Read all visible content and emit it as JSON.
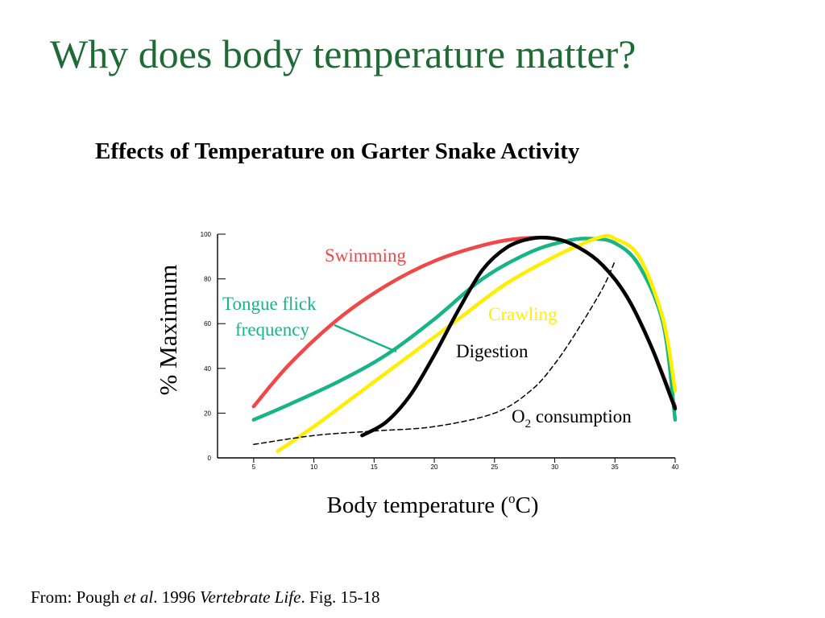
{
  "slide": {
    "title": "Why does body temperature matter?"
  },
  "chart_data": {
    "type": "line",
    "title": "Effects of Temperature on Garter Snake Activity",
    "xlabel": "Body temperature (°C)",
    "xlabel_parts": {
      "before": "Body temperature (",
      "sup": "o",
      "after": "C)"
    },
    "ylabel": "% Maximum",
    "xlim": [
      2,
      40
    ],
    "ylim": [
      0,
      100
    ],
    "x_ticks": [
      5,
      10,
      15,
      20,
      25,
      30,
      35,
      40
    ],
    "y_ticks": [
      0,
      20,
      40,
      60,
      80,
      100
    ],
    "x_tick_labels": [
      "5",
      "10",
      "15",
      "20",
      "25",
      "30",
      "35",
      "40"
    ],
    "y_tick_labels": [
      "0",
      "20",
      "40",
      "60",
      "80",
      "100"
    ],
    "grid": false,
    "legend": "none",
    "series": [
      {
        "name": "Swimming",
        "color": "#f04848",
        "style": "solid",
        "points": [
          [
            5,
            23
          ],
          [
            8,
            42
          ],
          [
            12,
            62
          ],
          [
            16,
            77
          ],
          [
            20,
            88
          ],
          [
            24,
            95
          ],
          [
            27,
            98
          ],
          [
            30,
            98
          ],
          [
            32,
            94
          ],
          [
            34,
            86
          ],
          [
            36,
            72
          ],
          [
            38,
            50
          ],
          [
            40,
            23
          ]
        ]
      },
      {
        "name": "Tongue flick frequency",
        "label_lines": [
          "Tongue flick",
          "frequency"
        ],
        "color": "#17b486",
        "style": "solid",
        "points": [
          [
            5,
            17
          ],
          [
            8,
            24
          ],
          [
            12,
            34
          ],
          [
            16,
            46
          ],
          [
            20,
            62
          ],
          [
            24,
            80
          ],
          [
            28,
            92
          ],
          [
            31,
            97
          ],
          [
            33,
            98
          ],
          [
            35,
            96
          ],
          [
            37,
            86
          ],
          [
            39,
            60
          ],
          [
            40,
            17
          ]
        ]
      },
      {
        "name": "Crawling",
        "color": "#ffee00",
        "style": "solid",
        "points": [
          [
            7,
            3
          ],
          [
            10,
            14
          ],
          [
            14,
            30
          ],
          [
            18,
            46
          ],
          [
            22,
            62
          ],
          [
            26,
            78
          ],
          [
            30,
            90
          ],
          [
            32,
            95
          ],
          [
            34,
            99
          ],
          [
            35,
            98
          ],
          [
            37,
            90
          ],
          [
            39,
            62
          ],
          [
            40,
            30
          ]
        ]
      },
      {
        "name": "Digestion",
        "color": "#000000",
        "style": "solid",
        "points": [
          [
            14,
            10
          ],
          [
            16,
            16
          ],
          [
            18,
            28
          ],
          [
            20,
            46
          ],
          [
            22,
            66
          ],
          [
            24,
            84
          ],
          [
            26,
            94
          ],
          [
            28,
            98
          ],
          [
            30,
            98
          ],
          [
            32,
            94
          ],
          [
            34,
            86
          ],
          [
            36,
            72
          ],
          [
            38,
            50
          ],
          [
            40,
            22
          ]
        ]
      },
      {
        "name": "O",
        "label_sub": "2",
        "label_rest": " consumption",
        "color": "#000000",
        "style": "dashed",
        "points": [
          [
            5,
            6
          ],
          [
            10,
            10
          ],
          [
            15,
            12
          ],
          [
            20,
            14
          ],
          [
            25,
            20
          ],
          [
            28,
            30
          ],
          [
            30,
            42
          ],
          [
            32,
            58
          ],
          [
            34,
            76
          ],
          [
            35,
            88
          ]
        ]
      }
    ]
  },
  "source": {
    "prefix": "From: Pough ",
    "etal": "et al",
    "middle": ". 1996 ",
    "book": "Vertebrate Life",
    "suffix": ". Fig. 15-18"
  }
}
